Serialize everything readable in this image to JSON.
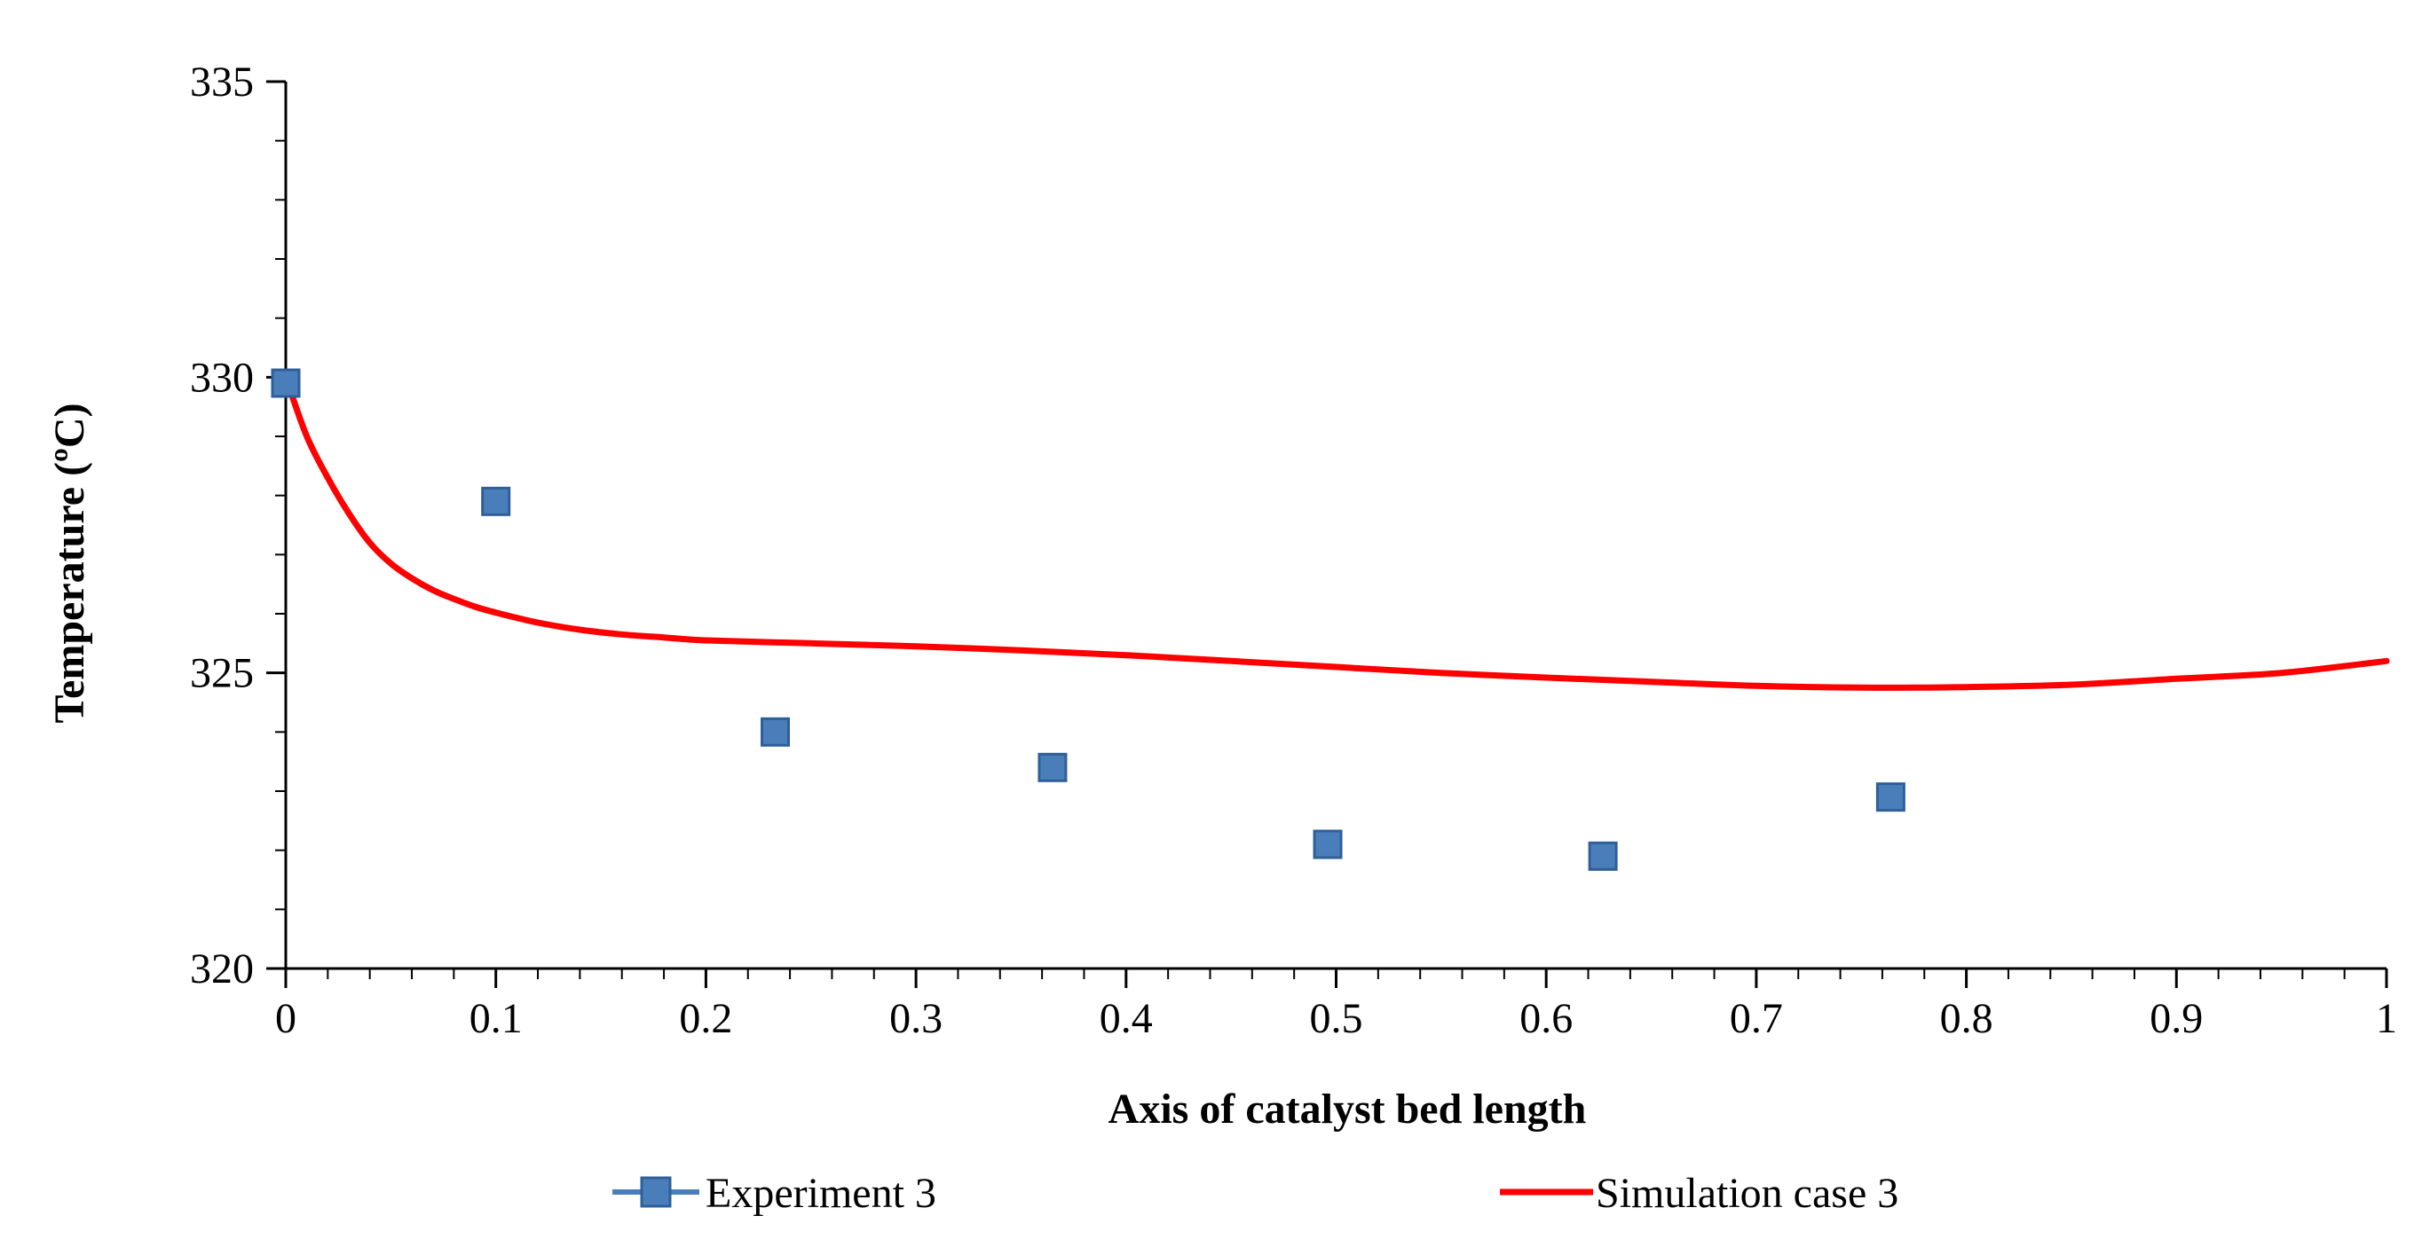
{
  "chart_data": {
    "type": "line",
    "title": "",
    "xlabel": "Axis of catalyst bed length",
    "ylabel": "Temperature (ºC)",
    "xlim": [
      0,
      1
    ],
    "ylim": [
      320,
      335
    ],
    "x_ticks": [
      0,
      0.1,
      0.2,
      0.3,
      0.4,
      0.5,
      0.6,
      0.7,
      0.8,
      0.9,
      1
    ],
    "x_tick_labels": [
      "0",
      "0.1",
      "0.2",
      "0.3",
      "0.4",
      "0.5",
      "0.6",
      "0.7",
      "0.8",
      "0.9",
      "1"
    ],
    "y_ticks": [
      320,
      325,
      330,
      335
    ],
    "y_tick_labels": [
      "320",
      "325",
      "330",
      "335"
    ],
    "grid": false,
    "legend_position": "bottom",
    "series": [
      {
        "name": "Experiment 3",
        "kind": "markers",
        "color": "#4a7ebb",
        "x": [
          0,
          0.1,
          0.233,
          0.365,
          0.496,
          0.627,
          0.764
        ],
        "y": [
          329.9,
          327.9,
          324.0,
          323.4,
          322.1,
          321.9,
          322.9
        ]
      },
      {
        "name": "Simulation case 3",
        "kind": "line",
        "color": "#ff0000",
        "x": [
          0,
          0.01,
          0.02,
          0.03,
          0.04,
          0.05,
          0.06,
          0.07,
          0.08,
          0.09,
          0.1,
          0.12,
          0.14,
          0.16,
          0.18,
          0.2,
          0.25,
          0.3,
          0.35,
          0.4,
          0.45,
          0.5,
          0.55,
          0.6,
          0.65,
          0.7,
          0.75,
          0.8,
          0.85,
          0.9,
          0.95,
          1.0
        ],
        "y": [
          330.0,
          329.0,
          328.3,
          327.7,
          327.2,
          326.85,
          326.6,
          326.4,
          326.25,
          326.12,
          326.02,
          325.85,
          325.73,
          325.65,
          325.6,
          325.55,
          325.5,
          325.45,
          325.38,
          325.3,
          325.2,
          325.1,
          325.0,
          324.92,
          324.85,
          324.78,
          324.75,
          324.76,
          324.8,
          324.9,
          325.0,
          325.2
        ]
      }
    ]
  }
}
